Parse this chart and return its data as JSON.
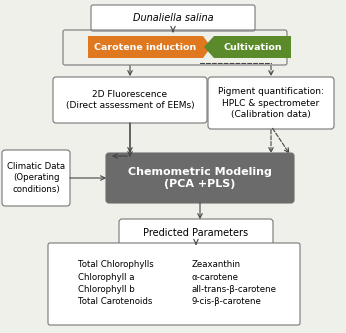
{
  "bg_color": "#f0f0eb",
  "dunaliella_text": "Dunaliella salina",
  "carotene_text": "Carotene induction",
  "carotene_color": "#E07820",
  "cultivation_text": "Cultivation",
  "cultivation_color": "#5A8A2A",
  "fluorescence_text": "2D Fluorescence\n(Direct assessment of EEMs)",
  "pigment_text": "Pigment quantification:\nHPLC & spectrometer\n(Calibration data)",
  "climatic_text": "Climatic Data\n(Operating\nconditions)",
  "chemometric_text": "Chemometric Modeling\n(PCA +PLS)",
  "chemometric_color": "#6B6B6B",
  "predicted_text": "Predicted Parameters",
  "bottom_left": "Total Chlorophylls\nChlorophyll a\nChlorophyll b\nTotal Carotenoids",
  "bottom_right": "Zeaxanthin\nα-carotene\nall-trans-β-carotene\n9-cis-β-carotene",
  "box_edge_color": "#777777",
  "arrow_color": "#444444",
  "fig_w": 3.46,
  "fig_h": 3.33,
  "dpi": 100
}
